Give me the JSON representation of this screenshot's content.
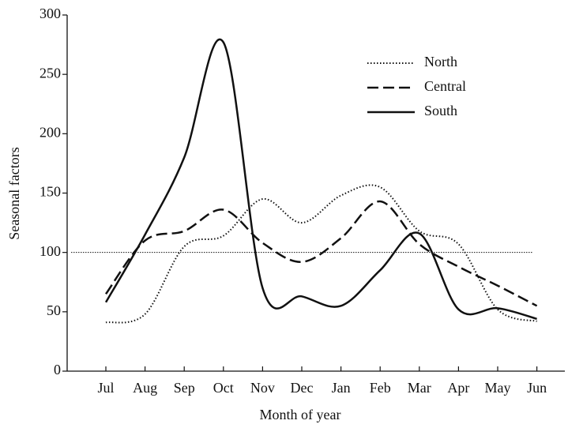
{
  "chart_data": {
    "type": "line",
    "x_label": "Month of year",
    "y_label": "Seasonal factors",
    "categories": [
      "Jul",
      "Aug",
      "Sep",
      "Oct",
      "Nov",
      "Dec",
      "Jan",
      "Feb",
      "Mar",
      "Apr",
      "May",
      "Jun"
    ],
    "series": [
      {
        "name": "North",
        "color": "#111111",
        "dash": "dotted",
        "values": [
          41,
          48,
          105,
          114,
          145,
          125,
          148,
          155,
          118,
          107,
          52,
          42
        ]
      },
      {
        "name": "Central",
        "color": "#111111",
        "dash": "dashed",
        "values": [
          65,
          110,
          118,
          136,
          108,
          92,
          112,
          143,
          107,
          88,
          72,
          55
        ]
      },
      {
        "name": "South",
        "color": "#111111",
        "dash": "solid",
        "values": [
          58,
          115,
          180,
          277,
          70,
          63,
          55,
          85,
          116,
          52,
          53,
          44
        ]
      }
    ],
    "reference_line": 100,
    "ylim": [
      0,
      300
    ],
    "yticks": [
      0,
      50,
      100,
      150,
      200,
      250,
      300
    ],
    "grid": false,
    "legend": "upper right"
  }
}
